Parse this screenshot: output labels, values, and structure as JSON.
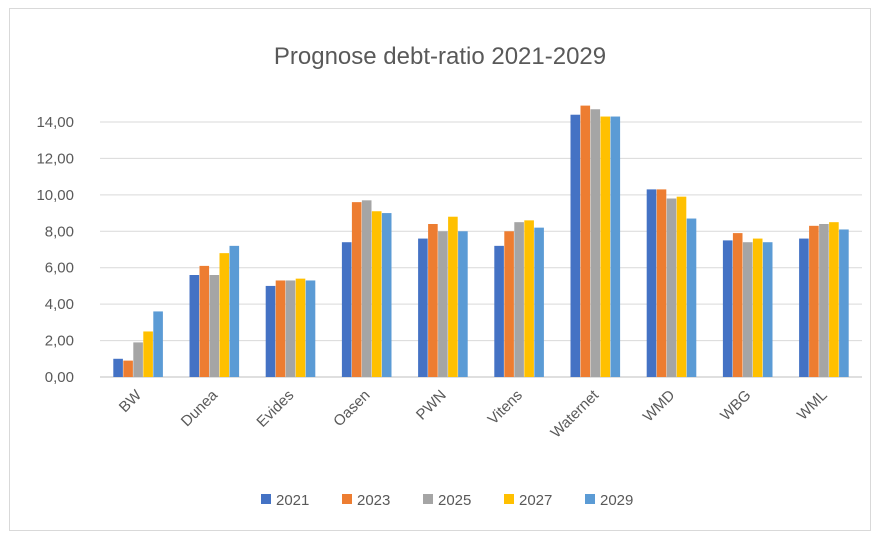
{
  "chart_data": {
    "type": "bar",
    "title": "Prognose debt-ratio 2021-2029",
    "xlabel": "",
    "ylabel": "",
    "ylim": [
      0,
      14
    ],
    "yticks": [
      "0,00",
      "2,00",
      "4,00",
      "6,00",
      "8,00",
      "10,00",
      "12,00",
      "14,00"
    ],
    "grid": true,
    "legend_position": "bottom",
    "categories": [
      "BW",
      "Dunea",
      "Evides",
      "Oasen",
      "PWN",
      "Vitens",
      "Waternet",
      "WMD",
      "WBG",
      "WML"
    ],
    "series": [
      {
        "name": "2021",
        "color": "#4472C4",
        "values": [
          1.0,
          5.6,
          5.0,
          7.4,
          7.6,
          7.2,
          14.4,
          10.3,
          7.5,
          7.6
        ]
      },
      {
        "name": "2023",
        "color": "#ED7D31",
        "values": [
          0.9,
          6.1,
          5.3,
          9.6,
          8.4,
          8.0,
          14.9,
          10.3,
          7.9,
          8.3
        ]
      },
      {
        "name": "2025",
        "color": "#A5A5A5",
        "values": [
          1.9,
          5.6,
          5.3,
          9.7,
          8.0,
          8.5,
          14.7,
          9.8,
          7.4,
          8.4
        ]
      },
      {
        "name": "2027",
        "color": "#FFC000",
        "values": [
          2.5,
          6.8,
          5.4,
          9.1,
          8.8,
          8.6,
          14.3,
          9.9,
          7.6,
          8.5
        ]
      },
      {
        "name": "2029",
        "color": "#5B9BD5",
        "values": [
          3.6,
          7.2,
          5.3,
          9.0,
          8.0,
          8.2,
          14.3,
          8.7,
          7.4,
          8.1
        ]
      }
    ]
  }
}
